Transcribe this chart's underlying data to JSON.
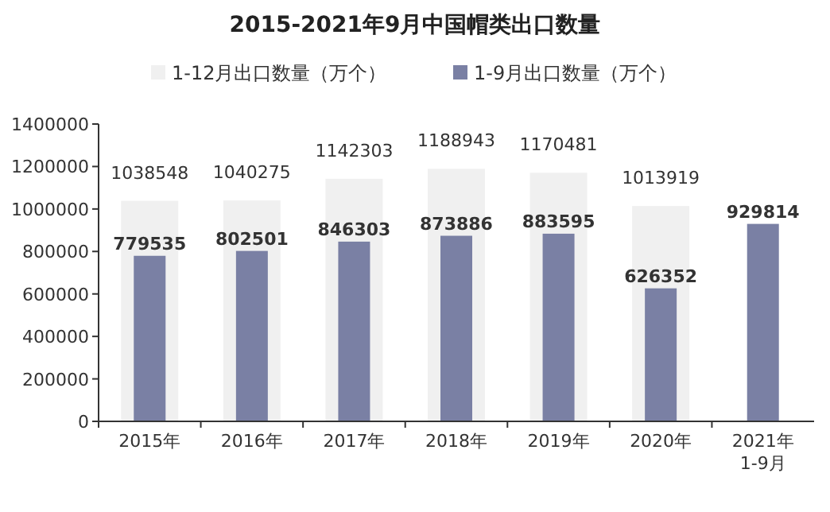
{
  "chart_data": {
    "type": "bar",
    "title": "2015-2021年9月中国帽类出口数量",
    "categories": [
      "2015年",
      "2016年",
      "2017年",
      "2018年",
      "2019年",
      "2020年",
      "2021年\n1-9月"
    ],
    "series": [
      {
        "name": "1-12月出口数量（万个）",
        "color": "#f0f0f0",
        "values": [
          1038548,
          1040275,
          1142303,
          1188943,
          1170481,
          1013919,
          null
        ]
      },
      {
        "name": "1-9月出口数量（万个）",
        "color": "#7a80a4",
        "values": [
          779535,
          802501,
          846303,
          873886,
          883595,
          626352,
          929814
        ]
      }
    ],
    "ylim": [
      0,
      1400000
    ],
    "yticks": [
      0,
      200000,
      400000,
      600000,
      800000,
      1000000,
      1200000,
      1400000
    ],
    "data_labels": true,
    "legend": "top",
    "grid": false
  }
}
